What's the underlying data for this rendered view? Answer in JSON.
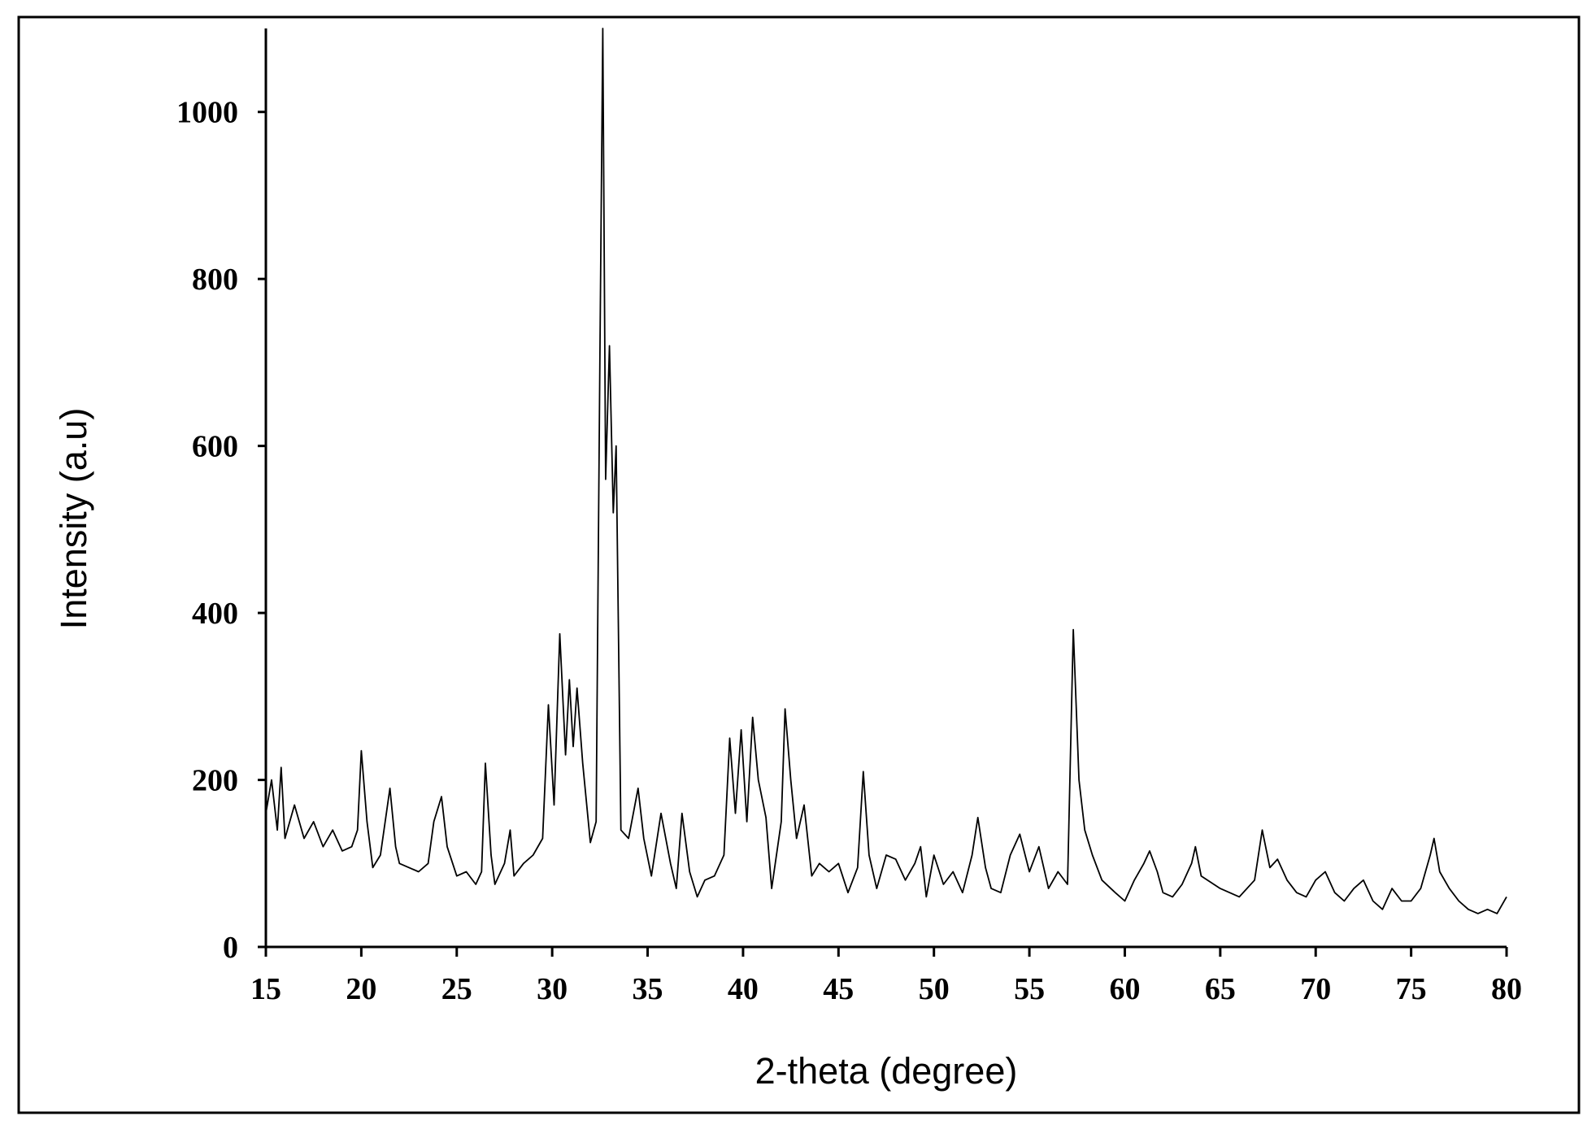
{
  "chart_data": {
    "type": "line",
    "xlabel": "2-theta (degree)",
    "ylabel": "Intensity (a.u)",
    "xlim": [
      15,
      80
    ],
    "ylim": [
      0,
      1100
    ],
    "xticks": [
      15,
      20,
      25,
      30,
      35,
      40,
      45,
      50,
      55,
      60,
      65,
      70,
      75,
      80
    ],
    "yticks": [
      0,
      200,
      400,
      600,
      800,
      1000
    ],
    "series": [
      {
        "color": "#000000",
        "x": [
          15,
          15.3,
          15.6,
          15.8,
          16,
          16.5,
          17,
          17.5,
          18,
          18.5,
          19,
          19.5,
          19.8,
          20,
          20.3,
          20.6,
          21,
          21.5,
          21.8,
          22,
          22.5,
          23,
          23.5,
          23.8,
          24.2,
          24.5,
          25,
          25.5,
          26,
          26.3,
          26.5,
          26.8,
          27,
          27.5,
          27.8,
          28,
          28.5,
          29,
          29.5,
          29.8,
          30.1,
          30.4,
          30.7,
          30.9,
          31.1,
          31.3,
          31.6,
          32,
          32.3,
          32.5,
          32.65,
          32.8,
          33,
          33.2,
          33.35,
          33.6,
          34,
          34.5,
          34.8,
          35.2,
          35.7,
          36.2,
          36.5,
          36.8,
          37.2,
          37.6,
          38,
          38.5,
          39,
          39.3,
          39.6,
          39.9,
          40.2,
          40.5,
          40.8,
          41.2,
          41.5,
          42,
          42.2,
          42.5,
          42.8,
          43.2,
          43.6,
          44,
          44.5,
          45,
          45.5,
          46,
          46.3,
          46.6,
          47,
          47.5,
          48,
          48.5,
          49,
          49.3,
          49.6,
          50,
          50.5,
          51,
          51.5,
          52,
          52.3,
          52.7,
          53,
          53.5,
          54,
          54.5,
          55,
          55.5,
          56,
          56.5,
          57,
          57.3,
          57.6,
          57.9,
          58.3,
          58.8,
          59.5,
          60,
          60.5,
          61,
          61.3,
          61.7,
          62,
          62.5,
          63,
          63.5,
          63.7,
          64,
          65,
          66,
          66.8,
          67.2,
          67.6,
          68,
          68.5,
          69,
          69.5,
          70,
          70.5,
          71,
          71.5,
          72,
          72.5,
          73,
          73.5,
          74,
          74.5,
          75,
          75.5,
          76,
          76.2,
          76.5,
          77,
          77.5,
          78,
          78.5,
          79,
          79.5,
          80
        ],
        "values": [
          160,
          200,
          140,
          215,
          130,
          170,
          130,
          150,
          120,
          140,
          115,
          120,
          140,
          235,
          150,
          95,
          110,
          190,
          120,
          100,
          95,
          90,
          100,
          150,
          180,
          120,
          85,
          90,
          75,
          90,
          220,
          110,
          75,
          100,
          140,
          85,
          100,
          110,
          130,
          290,
          170,
          375,
          230,
          320,
          240,
          310,
          220,
          125,
          150,
          700,
          1100,
          560,
          720,
          520,
          600,
          140,
          130,
          190,
          130,
          85,
          160,
          100,
          70,
          160,
          90,
          60,
          80,
          85,
          110,
          250,
          160,
          260,
          150,
          275,
          200,
          155,
          70,
          150,
          285,
          200,
          130,
          170,
          85,
          100,
          90,
          100,
          65,
          95,
          210,
          110,
          70,
          110,
          105,
          80,
          100,
          120,
          60,
          110,
          75,
          90,
          65,
          110,
          155,
          95,
          70,
          65,
          110,
          135,
          90,
          120,
          70,
          90,
          75,
          380,
          200,
          140,
          110,
          80,
          65,
          55,
          80,
          100,
          115,
          90,
          65,
          60,
          75,
          100,
          120,
          85,
          70,
          60,
          80,
          140,
          95,
          105,
          80,
          65,
          60,
          80,
          90,
          65,
          55,
          70,
          80,
          55,
          45,
          70,
          55,
          55,
          70,
          110,
          130,
          90,
          70,
          55,
          45,
          40,
          45,
          40,
          60
        ]
      }
    ]
  }
}
